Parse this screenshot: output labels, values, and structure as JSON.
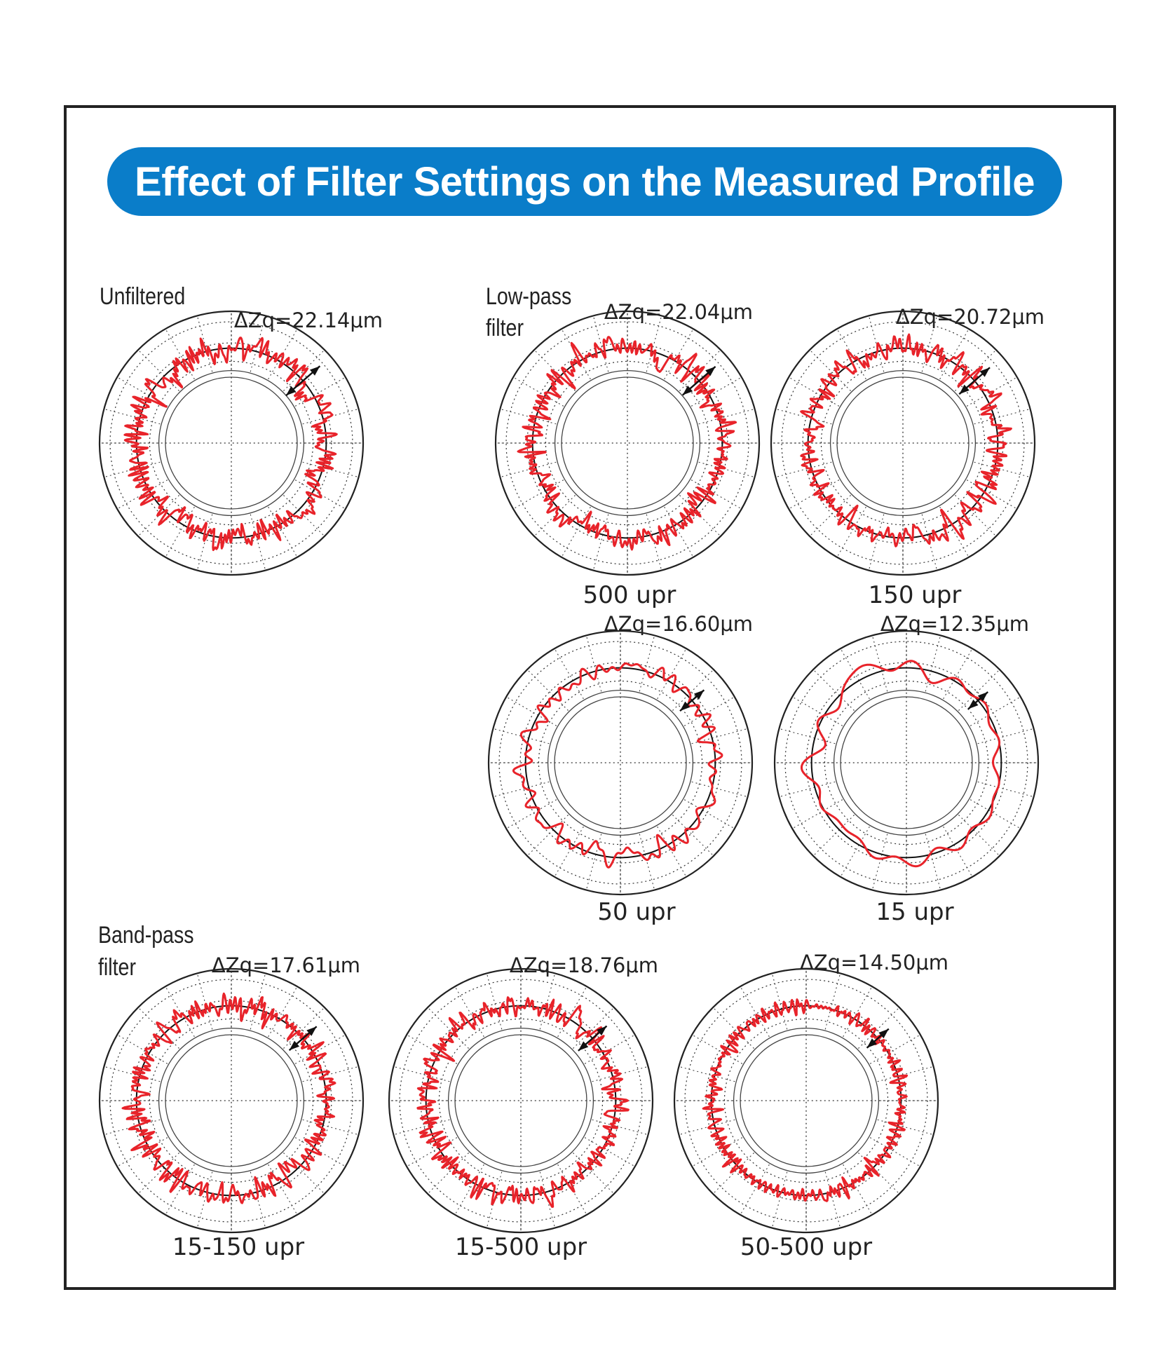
{
  "title": "Effect of Filter Settings on the Measured Profile",
  "colors": {
    "title_bg": "#0a7dc9",
    "profile": "#e8232a",
    "frame": "#222222"
  },
  "sections": {
    "unfiltered": "Unfiltered",
    "lowpass": [
      "Low-pass",
      "filter"
    ],
    "bandpass": [
      "Band-pass",
      "filter"
    ]
  },
  "chart_data": [
    {
      "type": "polar",
      "group": "Unfiltered",
      "caption": "",
      "delta_zq": "ΔZq=22.14μm",
      "delta_zq_um": 22.14,
      "amplitude": 0.155,
      "harmonics": "all"
    },
    {
      "type": "polar",
      "group": "Low-pass filter",
      "caption": "500 upr",
      "delta_zq": "ΔZq=22.04μm",
      "delta_zq_um": 22.04,
      "amplitude": 0.15,
      "max_upr": 500
    },
    {
      "type": "polar",
      "group": "Low-pass filter",
      "caption": "150 upr",
      "delta_zq": "ΔZq=20.72μm",
      "delta_zq_um": 20.72,
      "amplitude": 0.14,
      "max_upr": 150
    },
    {
      "type": "polar",
      "group": "Low-pass filter",
      "caption": "50 upr",
      "delta_zq": "ΔZq=16.60μm",
      "delta_zq_um": 16.6,
      "amplitude": 0.11,
      "max_upr": 50
    },
    {
      "type": "polar",
      "group": "Low-pass filter",
      "caption": "15 upr",
      "delta_zq": "ΔZq=12.35μm",
      "delta_zq_um": 12.35,
      "amplitude": 0.09,
      "max_upr": 15
    },
    {
      "type": "polar",
      "group": "Band-pass filter",
      "caption": "15-150 upr",
      "delta_zq": "ΔZq=17.61μm",
      "delta_zq_um": 17.61,
      "amplitude": 0.125,
      "min_upr": 15,
      "max_upr": 150
    },
    {
      "type": "polar",
      "group": "Band-pass filter",
      "caption": "15-500 upr",
      "delta_zq": "ΔZq=18.76μm",
      "delta_zq_um": 18.76,
      "amplitude": 0.13,
      "min_upr": 15,
      "max_upr": 500
    },
    {
      "type": "polar",
      "group": "Band-pass filter",
      "caption": "50-500 upr",
      "delta_zq": "ΔZq=14.50μm",
      "delta_zq_um": 14.5,
      "amplitude": 0.1,
      "min_upr": 50,
      "max_upr": 500
    }
  ]
}
